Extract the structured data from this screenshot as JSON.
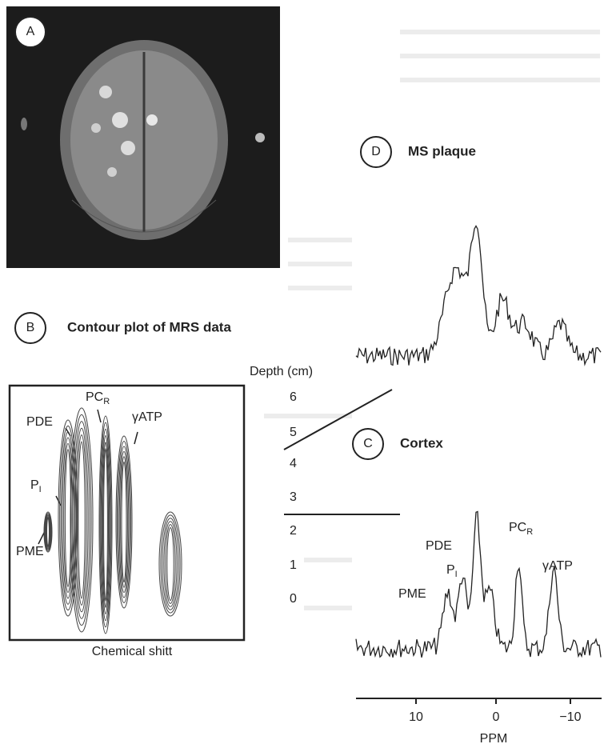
{
  "panels": {
    "a": {
      "label": "A"
    },
    "b": {
      "label": "B",
      "title": "Contour plot of MRS data",
      "depth_axis": {
        "title": "Depth (cm)",
        "ticks": [
          "6",
          "5",
          "4",
          "3",
          "2",
          "1",
          "0"
        ]
      },
      "x_axis_title": "Chemical shitt",
      "peaks": [
        {
          "name": "PC",
          "sub": "R"
        },
        {
          "name": "PDE"
        },
        {
          "name": "γATP"
        },
        {
          "name": "P",
          "sub": "I"
        },
        {
          "name": "PME"
        }
      ]
    },
    "c": {
      "label": "C",
      "title": "Cortex",
      "peaks": [
        {
          "name": "PC",
          "sub": "R"
        },
        {
          "name": "PDE"
        },
        {
          "name": "P",
          "sub": "I"
        },
        {
          "name": "γATP"
        },
        {
          "name": "PME"
        }
      ]
    },
    "d": {
      "label": "D",
      "title": "MS plaque"
    }
  },
  "ppm_axis": {
    "title": "PPM",
    "ticks": [
      "10",
      "0",
      "−10"
    ]
  }
}
